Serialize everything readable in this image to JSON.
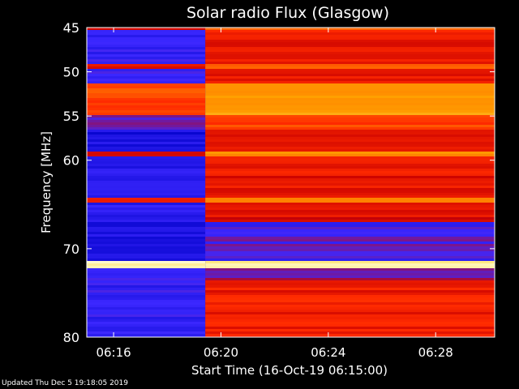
{
  "chart_data": {
    "type": "heatmap",
    "title": "Solar radio Flux (Glasgow)",
    "xlabel": "Start Time (16-Oct-19 06:15:00)",
    "ylabel": "Frequency [MHz]",
    "x_tick_labels": [
      "06:16",
      "06:20",
      "06:24",
      "06:28"
    ],
    "x_ticks_minutes_after_start": [
      1,
      5,
      9,
      13
    ],
    "x_range_minutes_after_start": [
      0,
      15.2
    ],
    "y_tick_labels": [
      "45",
      "50",
      "55",
      "60",
      "70",
      "80"
    ],
    "y_ticks": [
      45,
      50,
      55,
      60,
      70,
      80
    ],
    "ylim": [
      45,
      80
    ],
    "y_reversed": true,
    "instrument_switch_time": "06:19:25",
    "colormap": [
      "#0000c8",
      "#3c28ff",
      "#c80000",
      "#ff2a00",
      "#ff8000",
      "#ffa000",
      "#ffe060",
      "#ffffe6"
    ],
    "bands": [
      {
        "f_lo": 45.0,
        "f_hi": 45.3,
        "before": 0.3,
        "after": 0.55
      },
      {
        "f_lo": 45.3,
        "f_hi": 51.2,
        "before": 0.12,
        "after": 0.36
      },
      {
        "f_lo": 49.2,
        "f_hi": 49.7,
        "before": 0.35,
        "after": 0.55
      },
      {
        "f_lo": 51.2,
        "f_hi": 54.8,
        "before": 0.45,
        "after": 0.7
      },
      {
        "f_lo": 52.0,
        "f_hi": 53.0,
        "before": 0.5,
        "after": 0.66
      },
      {
        "f_lo": 54.8,
        "f_hi": 56.5,
        "before": 0.2,
        "after": 0.45
      },
      {
        "f_lo": 56.5,
        "f_hi": 59.0,
        "before": 0.06,
        "after": 0.34
      },
      {
        "f_lo": 59.0,
        "f_hi": 59.5,
        "before": 0.35,
        "after": 0.62
      },
      {
        "f_lo": 59.5,
        "f_hi": 64.2,
        "before": 0.1,
        "after": 0.36
      },
      {
        "f_lo": 64.2,
        "f_hi": 64.7,
        "before": 0.4,
        "after": 0.6
      },
      {
        "f_lo": 64.7,
        "f_hi": 67.0,
        "before": 0.1,
        "after": 0.34
      },
      {
        "f_lo": 67.0,
        "f_hi": 71.5,
        "before": 0.07,
        "after": 0.15
      },
      {
        "f_lo": 71.5,
        "f_hi": 72.1,
        "before": 0.95,
        "after": 0.95
      },
      {
        "f_lo": 72.1,
        "f_hi": 73.5,
        "before": 0.12,
        "after": 0.2
      },
      {
        "f_lo": 73.5,
        "f_hi": 80.0,
        "before": 0.12,
        "after": 0.38
      }
    ]
  },
  "footer": {
    "updated_text": "Updated Thu Dec  5 19:18:05 2019"
  }
}
